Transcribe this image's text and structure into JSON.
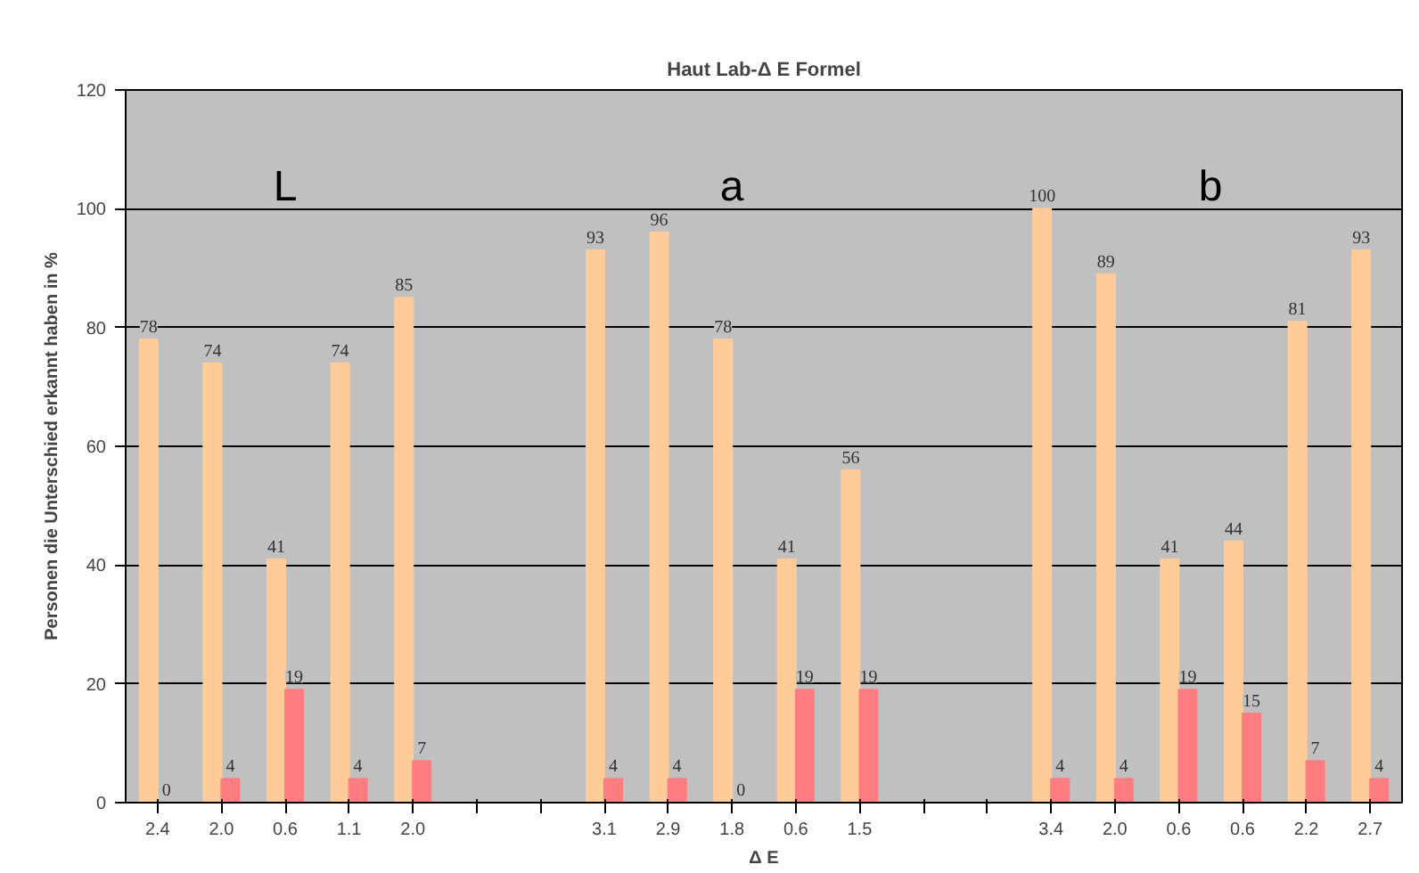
{
  "chart_data": {
    "type": "bar",
    "title": "Haut Lab-Δ E Formel",
    "xlabel": "Δ E",
    "ylabel": "Personen die Unterschied erkannt haben in %",
    "categories": [
      "2.4",
      "2.0",
      "0.6",
      "1.1",
      "2.0",
      null,
      null,
      "3.1",
      "2.9",
      "1.8",
      "0.6",
      "1.5",
      null,
      null,
      "3.4",
      "2.0",
      "0.6",
      "0.6",
      "2.2",
      "2.7"
    ],
    "series": [
      {
        "color": "#ffcc99",
        "values": [
          78,
          74,
          41,
          74,
          85,
          null,
          null,
          93,
          96,
          78,
          41,
          56,
          null,
          null,
          100,
          89,
          41,
          44,
          81,
          93
        ]
      },
      {
        "color": "#ff7c80",
        "values": [
          0,
          4,
          19,
          4,
          7,
          null,
          null,
          4,
          4,
          0,
          19,
          19,
          null,
          null,
          4,
          4,
          19,
          15,
          7,
          4
        ]
      }
    ],
    "ylim": [
      0,
      120
    ],
    "yticks": [
      0,
      20,
      40,
      60,
      80,
      100,
      120
    ],
    "grid": "y",
    "data_labels": true,
    "annotations": [
      "L",
      "a",
      "b"
    ]
  }
}
